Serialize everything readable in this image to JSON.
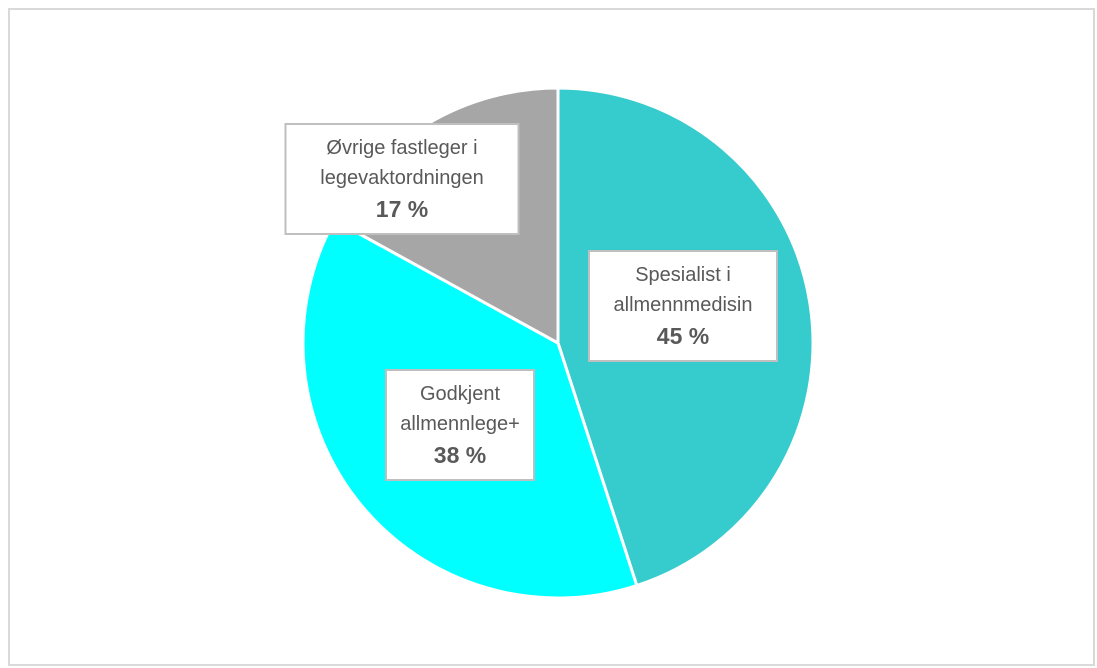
{
  "chart_data": {
    "type": "pie",
    "categories": [
      "Spesialist i allmennmedisin",
      "Godkjent allmennlege+",
      "Øvrige fastleger i legevaktordningen"
    ],
    "values": [
      45,
      38,
      17
    ],
    "value_labels": [
      "45 %",
      "38 %",
      "17 %"
    ],
    "colors": [
      "#36cbcc",
      "#00ffff",
      "#a6a6a6"
    ]
  }
}
